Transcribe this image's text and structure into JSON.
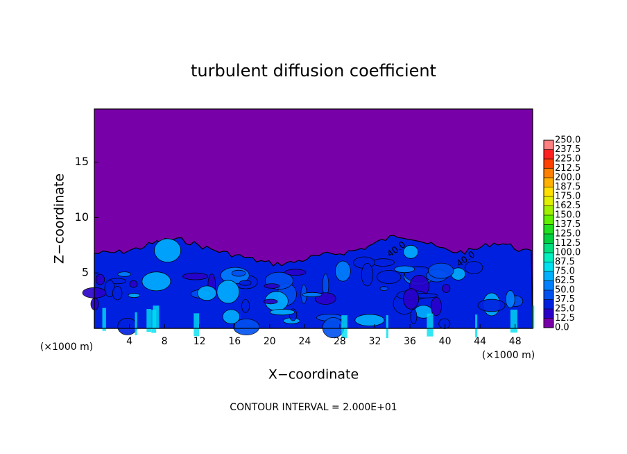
{
  "chart_data": {
    "type": "contour",
    "title": "turbulent diffusion coefficient",
    "xlabel": "X−coordinate",
    "ylabel": "Z−coordinate",
    "x_unit": "(×1000 m)",
    "xlim": [
      0,
      50
    ],
    "ylim": [
      0,
      19.8
    ],
    "xticks": [
      4,
      8,
      12,
      16,
      20,
      24,
      28,
      32,
      36,
      40,
      44,
      48
    ],
    "yticks": [
      5,
      10,
      15
    ],
    "levels": [
      {
        "value": 0,
        "label": "0.0"
      },
      {
        "value": 12.5,
        "label": "12.5"
      },
      {
        "value": 25,
        "label": "25.0"
      },
      {
        "value": 37.5,
        "label": "37.5"
      },
      {
        "value": 50,
        "label": "50.0"
      },
      {
        "value": 62.5,
        "label": "62.5"
      },
      {
        "value": 75,
        "label": "75.0"
      },
      {
        "value": 87.5,
        "label": "87.5"
      },
      {
        "value": 100,
        "label": "100.0"
      },
      {
        "value": 112.5,
        "label": "112.5"
      },
      {
        "value": 125,
        "label": "125.0"
      },
      {
        "value": 137.5,
        "label": "137.5"
      },
      {
        "value": 150,
        "label": "150.0"
      },
      {
        "value": 162.5,
        "label": "162.5"
      },
      {
        "value": 175,
        "label": "175.0"
      },
      {
        "value": 187.5,
        "label": "187.5"
      },
      {
        "value": 200,
        "label": "200.0"
      },
      {
        "value": 212.5,
        "label": "212.5"
      },
      {
        "value": 225,
        "label": "225.0"
      },
      {
        "value": 237.5,
        "label": "237.5"
      },
      {
        "value": 250,
        "label": "250.0"
      }
    ],
    "colors": [
      "#7800a8",
      "#2a00c8",
      "#0020e0",
      "#0050f0",
      "#0080ff",
      "#00b0ff",
      "#00e0f0",
      "#00f0c0",
      "#00e080",
      "#00d040",
      "#20e020",
      "#60f000",
      "#a0f000",
      "#e0f000",
      "#ffe000",
      "#ffb000",
      "#ff8000",
      "#ff4000",
      "#ff2020",
      "#ff8080"
    ],
    "contour_labels": [
      "40.0",
      "40.0"
    ],
    "annotation": "CONTOUR INTERVAL = 2.000E+01"
  }
}
